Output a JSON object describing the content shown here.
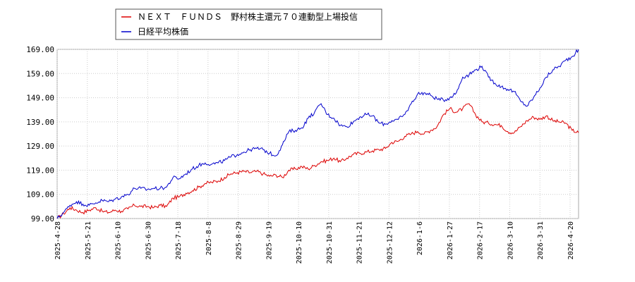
{
  "chart_data": {
    "type": "line",
    "title": "",
    "xlabel": "",
    "ylabel": "",
    "ylim": [
      99.0,
      169.0
    ],
    "y_ticks": [
      "169.00",
      "159.00",
      "149.00",
      "139.00",
      "129.00",
      "119.00",
      "109.00",
      "99.00"
    ],
    "y_tick_values": [
      169,
      159,
      149,
      139,
      129,
      119,
      109,
      99
    ],
    "x_ticks": [
      "2025-4-28",
      "2025-5-21",
      "2025-6-10",
      "2025-6-30",
      "2025-7-18",
      "2025-8-8",
      "2025-8-29",
      "2025-9-19",
      "2025-10-10",
      "2025-10-31",
      "2025-11-21",
      "2025-12-12",
      "2026-1-6",
      "2026-1-27",
      "2026-2-17",
      "2026-3-10",
      "2026-3-31",
      "2026-4-20"
    ],
    "grid": true,
    "legend_position": "top-left",
    "series": [
      {
        "name": "ＮＥＸＴ　ＦＵＮＤＳ　野村株主還元７０連動型上場投信",
        "color": "#dd0000",
        "values": [
          99.0,
          101.0,
          103.5,
          102.5,
          101.5,
          102.5,
          103.5,
          102.0,
          101.5,
          102.5,
          102.0,
          103.0,
          104.5,
          104.0,
          104.0,
          103.5,
          104.5,
          104.0,
          107.5,
          108.0,
          109.5,
          110.5,
          112.0,
          113.5,
          114.0,
          114.5,
          116.0,
          117.5,
          118.0,
          118.5,
          118.0,
          118.5,
          117.5,
          116.5,
          117.0,
          116.0,
          119.0,
          119.5,
          120.5,
          119.5,
          121.0,
          122.5,
          123.0,
          124.0,
          122.5,
          124.0,
          125.5,
          126.0,
          126.5,
          127.0,
          127.5,
          128.0,
          130.5,
          131.0,
          133.0,
          134.0,
          135.0,
          134.0,
          135.5,
          137.0,
          142.0,
          144.5,
          143.0,
          144.5,
          146.5,
          142.0,
          139.0,
          138.5,
          138.0,
          137.5,
          135.0,
          134.5,
          137.0,
          139.5,
          141.0,
          140.0,
          141.5,
          139.5,
          139.0,
          138.5,
          135.5,
          134.5
        ]
      },
      {
        "name": "日経平均株価",
        "color": "#0000cc",
        "values": [
          99.0,
          101.5,
          104.5,
          106.0,
          105.0,
          104.5,
          105.5,
          106.5,
          106.0,
          107.0,
          108.0,
          109.0,
          111.5,
          111.5,
          111.0,
          111.5,
          111.5,
          112.0,
          116.0,
          115.5,
          117.5,
          119.5,
          121.0,
          122.0,
          121.5,
          122.0,
          123.0,
          124.5,
          125.5,
          126.5,
          127.5,
          128.0,
          127.5,
          126.0,
          125.0,
          129.5,
          135.0,
          135.5,
          136.5,
          140.5,
          143.0,
          146.5,
          142.0,
          140.5,
          137.5,
          137.0,
          139.0,
          141.0,
          142.0,
          141.5,
          138.5,
          138.0,
          139.5,
          140.0,
          142.0,
          146.5,
          150.5,
          151.0,
          150.0,
          148.5,
          148.0,
          149.0,
          151.0,
          157.5,
          158.5,
          160.5,
          162.0,
          157.5,
          155.0,
          153.5,
          152.5,
          151.5,
          147.5,
          145.5,
          149.0,
          153.0,
          157.5,
          160.5,
          162.0,
          164.5,
          166.0,
          169.0
        ]
      }
    ]
  }
}
